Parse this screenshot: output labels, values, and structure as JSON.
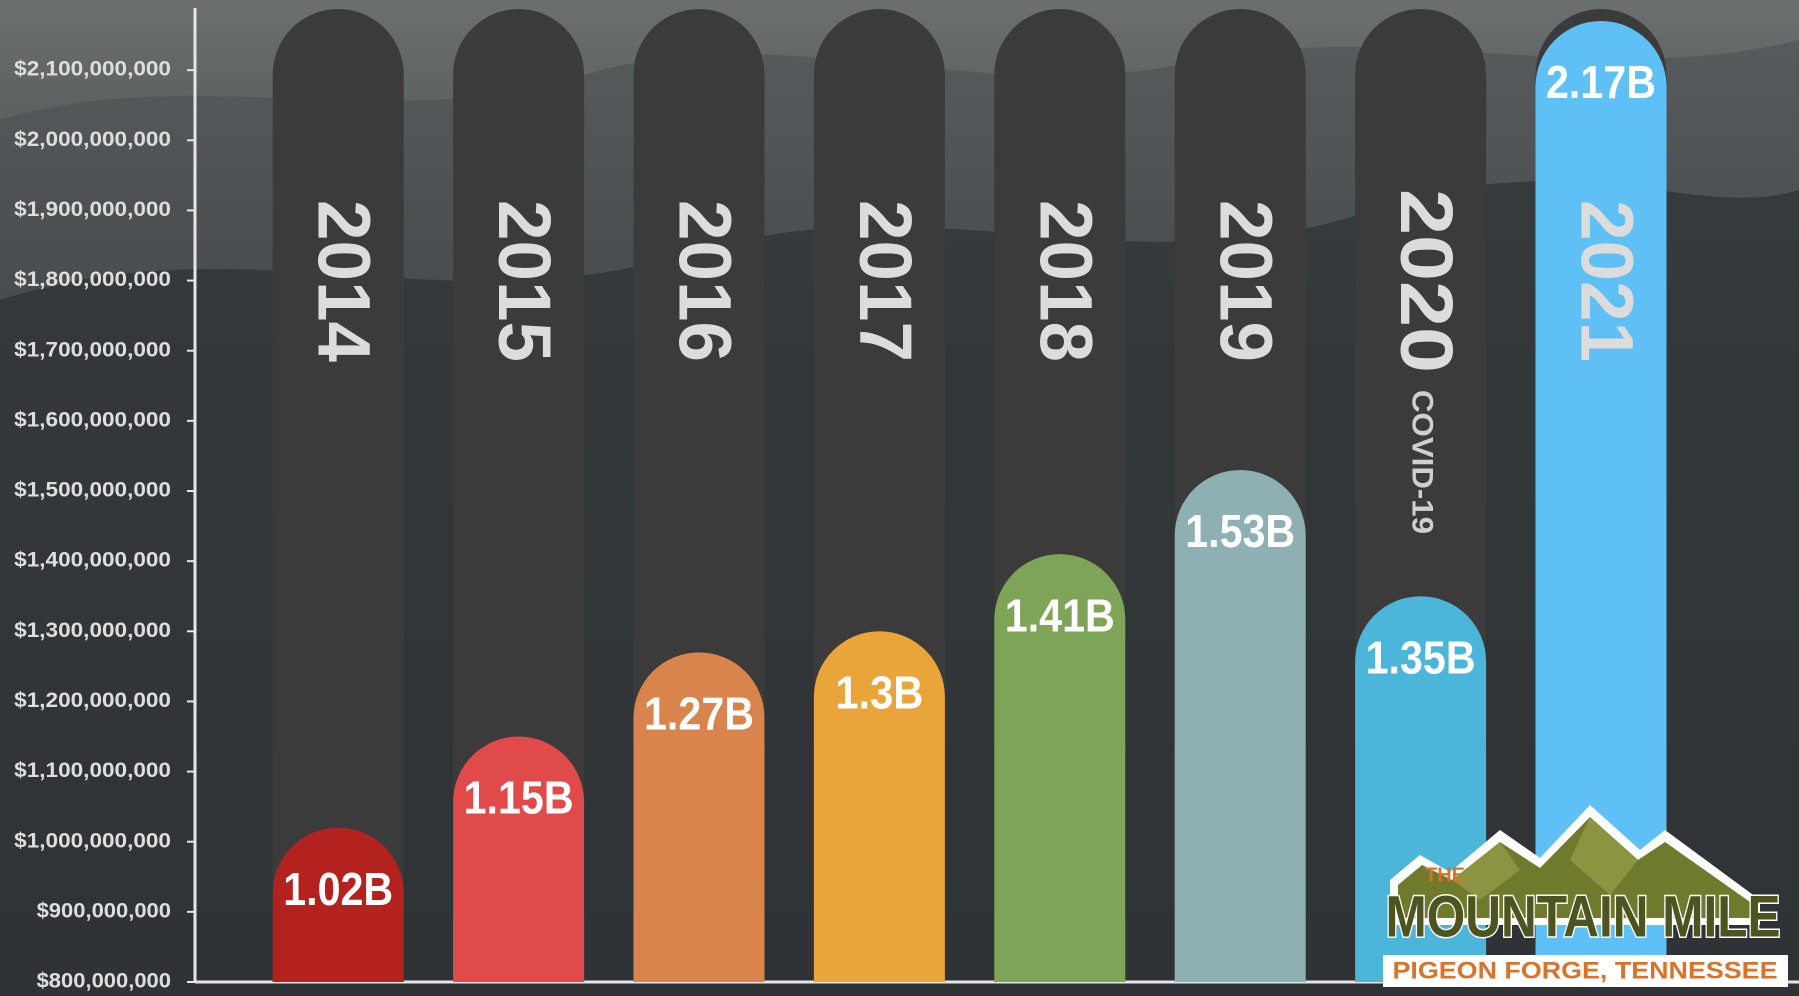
{
  "chart_data": {
    "type": "bar",
    "categories": [
      "2014",
      "2015",
      "2016",
      "2017",
      "2018",
      "2019",
      "2020",
      "2021"
    ],
    "values": [
      1020000000,
      1150000000,
      1270000000,
      1300000000,
      1410000000,
      1530000000,
      1350000000,
      2170000000
    ],
    "value_labels": [
      "1.02B",
      "1.15B",
      "1.27B",
      "1.3B",
      "1.41B",
      "1.53B",
      "1.35B",
      "2.17B"
    ],
    "colors": [
      "#b3221f",
      "#e04a4a",
      "#d9844c",
      "#e9a43a",
      "#7ea557",
      "#8eb0b3",
      "#4bb5da",
      "#5fc0f6"
    ],
    "annotations": [
      {
        "category": "2020",
        "text": "COVID-19"
      }
    ],
    "ylim": [
      800000000,
      2200000000
    ],
    "yticks": [
      {
        "value": 800000000,
        "label": "$800,000,000"
      },
      {
        "value": 900000000,
        "label": "$900,000,000"
      },
      {
        "value": 1000000000,
        "label": "$1,000,000,000"
      },
      {
        "value": 1100000000,
        "label": "$1,100,000,000"
      },
      {
        "value": 1200000000,
        "label": "$1,200,000,000"
      },
      {
        "value": 1300000000,
        "label": "$1,300,000,000"
      },
      {
        "value": 1400000000,
        "label": "$1,400,000,000"
      },
      {
        "value": 1500000000,
        "label": "$1,500,000,000"
      },
      {
        "value": 1600000000,
        "label": "$1,600,000,000"
      },
      {
        "value": 1700000000,
        "label": "$1,700,000,000"
      },
      {
        "value": 1800000000,
        "label": "$1,800,000,000"
      },
      {
        "value": 1900000000,
        "label": "$1,900,000,000"
      },
      {
        "value": 2000000000,
        "label": "$2,000,000,000"
      },
      {
        "value": 2100000000,
        "label": "$2,100,000,000"
      }
    ],
    "grid": false
  },
  "logo": {
    "top": "THE",
    "name": "MOUNTAIN MILE",
    "place": "PIGEON FORGE, TENNESSEE"
  }
}
